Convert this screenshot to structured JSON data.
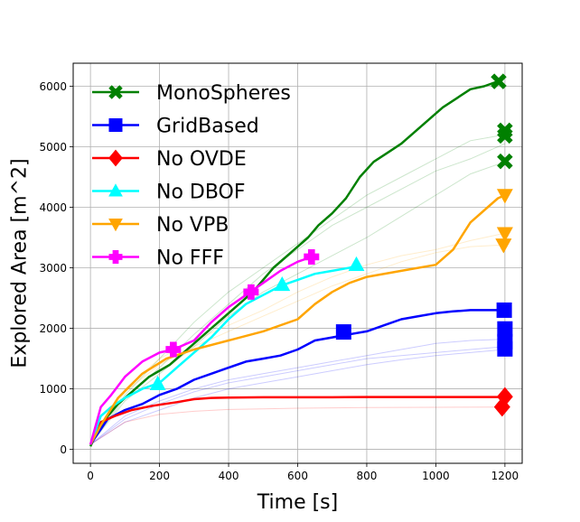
{
  "chart_data": {
    "type": "line",
    "title": "",
    "xlabel": "Time [s]",
    "ylabel": "Explored Area [m^2]",
    "xlim": [
      -50,
      1250
    ],
    "ylim": [
      -230,
      6380
    ],
    "xticks": [
      0,
      200,
      400,
      600,
      800,
      1000,
      1200
    ],
    "yticks": [
      0,
      1000,
      2000,
      3000,
      4000,
      5000,
      6000
    ],
    "grid": true,
    "legend_position": "upper-left",
    "series": [
      {
        "name": "MonoSpheres",
        "color": "#008000",
        "marker": "x",
        "points": [
          [
            0,
            50
          ],
          [
            20,
            300
          ],
          [
            50,
            550
          ],
          [
            80,
            750
          ],
          [
            110,
            900
          ],
          [
            140,
            1050
          ],
          [
            170,
            1200
          ],
          [
            200,
            1300
          ],
          [
            230,
            1400
          ],
          [
            260,
            1550
          ],
          [
            290,
            1700
          ],
          [
            320,
            1850
          ],
          [
            350,
            2000
          ],
          [
            380,
            2150
          ],
          [
            410,
            2300
          ],
          [
            440,
            2450
          ],
          [
            470,
            2600
          ],
          [
            500,
            2800
          ],
          [
            530,
            3000
          ],
          [
            560,
            3150
          ],
          [
            590,
            3300
          ],
          [
            630,
            3500
          ],
          [
            660,
            3700
          ],
          [
            700,
            3900
          ],
          [
            740,
            4150
          ],
          [
            780,
            4500
          ],
          [
            820,
            4750
          ],
          [
            860,
            4900
          ],
          [
            900,
            5050
          ],
          [
            940,
            5250
          ],
          [
            980,
            5450
          ],
          [
            1020,
            5650
          ],
          [
            1060,
            5800
          ],
          [
            1100,
            5950
          ],
          [
            1140,
            6000
          ],
          [
            1180,
            6080
          ]
        ],
        "end_markers": [
          [
            1182,
            6080
          ]
        ]
      },
      {
        "name": "GridBased",
        "color": "#0000ff",
        "marker": "square",
        "points": [
          [
            0,
            80
          ],
          [
            20,
            250
          ],
          [
            50,
            500
          ],
          [
            100,
            650
          ],
          [
            150,
            750
          ],
          [
            200,
            900
          ],
          [
            250,
            1000
          ],
          [
            300,
            1150
          ],
          [
            350,
            1250
          ],
          [
            400,
            1350
          ],
          [
            450,
            1450
          ],
          [
            500,
            1500
          ],
          [
            550,
            1550
          ],
          [
            600,
            1650
          ],
          [
            650,
            1800
          ],
          [
            700,
            1850
          ],
          [
            750,
            1900
          ],
          [
            800,
            1950
          ],
          [
            850,
            2050
          ],
          [
            900,
            2150
          ],
          [
            950,
            2200
          ],
          [
            1000,
            2250
          ],
          [
            1050,
            2280
          ],
          [
            1100,
            2300
          ],
          [
            1150,
            2300
          ],
          [
            1200,
            2300
          ]
        ],
        "end_markers": [
          [
            733,
            1940
          ],
          [
            1198,
            2300
          ]
        ]
      },
      {
        "name": "No OVDE",
        "color": "#ff0000",
        "marker": "diamond",
        "points": [
          [
            0,
            80
          ],
          [
            30,
            450
          ],
          [
            70,
            550
          ],
          [
            120,
            650
          ],
          [
            180,
            720
          ],
          [
            250,
            780
          ],
          [
            300,
            830
          ],
          [
            350,
            850
          ],
          [
            400,
            855
          ],
          [
            500,
            860
          ],
          [
            600,
            860
          ],
          [
            700,
            860
          ],
          [
            800,
            865
          ],
          [
            900,
            865
          ],
          [
            1000,
            865
          ],
          [
            1100,
            865
          ],
          [
            1200,
            865
          ]
        ],
        "end_markers": [
          [
            1200,
            870
          ],
          [
            1192,
            700
          ]
        ]
      },
      {
        "name": "No DBOF",
        "color": "#00ffff",
        "marker": "triangle-up",
        "points": [
          [
            0,
            80
          ],
          [
            30,
            550
          ],
          [
            60,
            700
          ],
          [
            100,
            850
          ],
          [
            150,
            1000
          ],
          [
            200,
            1100
          ],
          [
            250,
            1350
          ],
          [
            300,
            1600
          ],
          [
            350,
            1850
          ],
          [
            400,
            2150
          ],
          [
            450,
            2400
          ],
          [
            500,
            2550
          ],
          [
            550,
            2700
          ],
          [
            600,
            2800
          ],
          [
            650,
            2900
          ],
          [
            700,
            2950
          ],
          [
            750,
            3000
          ],
          [
            775,
            3050
          ]
        ],
        "end_markers": [
          [
            195,
            1080
          ],
          [
            555,
            2720
          ],
          [
            770,
            3050
          ]
        ]
      },
      {
        "name": "No VPB",
        "color": "#ffa500",
        "marker": "triangle-down",
        "points": [
          [
            0,
            80
          ],
          [
            30,
            400
          ],
          [
            80,
            850
          ],
          [
            150,
            1250
          ],
          [
            220,
            1500
          ],
          [
            300,
            1650
          ],
          [
            400,
            1800
          ],
          [
            500,
            1950
          ],
          [
            600,
            2150
          ],
          [
            650,
            2400
          ],
          [
            700,
            2600
          ],
          [
            750,
            2750
          ],
          [
            800,
            2850
          ],
          [
            900,
            2950
          ],
          [
            1000,
            3050
          ],
          [
            1050,
            3300
          ],
          [
            1100,
            3750
          ],
          [
            1150,
            4000
          ],
          [
            1180,
            4150
          ],
          [
            1200,
            4200
          ]
        ],
        "end_markers": [
          [
            1200,
            4200
          ],
          [
            1200,
            3570
          ],
          [
            1196,
            3380
          ]
        ]
      },
      {
        "name": "No FFF",
        "color": "#ff00ff",
        "marker": "plus",
        "points": [
          [
            0,
            80
          ],
          [
            30,
            700
          ],
          [
            60,
            900
          ],
          [
            100,
            1200
          ],
          [
            150,
            1450
          ],
          [
            200,
            1600
          ],
          [
            240,
            1650
          ],
          [
            300,
            1800
          ],
          [
            350,
            2100
          ],
          [
            400,
            2350
          ],
          [
            450,
            2550
          ],
          [
            500,
            2750
          ],
          [
            550,
            2950
          ],
          [
            600,
            3100
          ],
          [
            640,
            3180
          ]
        ],
        "end_markers": [
          [
            240,
            1650
          ],
          [
            465,
            2600
          ],
          [
            640,
            3180
          ]
        ]
      }
    ],
    "faint_runs": [
      {
        "color": "#008000",
        "points": [
          [
            0,
            80
          ],
          [
            100,
            900
          ],
          [
            200,
            1500
          ],
          [
            300,
            2100
          ],
          [
            400,
            2600
          ],
          [
            500,
            3000
          ],
          [
            600,
            3400
          ],
          [
            700,
            3800
          ],
          [
            800,
            4200
          ],
          [
            900,
            4500
          ],
          [
            1000,
            4800
          ],
          [
            1100,
            5100
          ],
          [
            1200,
            5200
          ]
        ],
        "end_marker": [
          1200,
          5270
        ]
      },
      {
        "color": "#008000",
        "points": [
          [
            0,
            80
          ],
          [
            100,
            850
          ],
          [
            200,
            1350
          ],
          [
            300,
            1900
          ],
          [
            400,
            2400
          ],
          [
            500,
            2900
          ],
          [
            600,
            3300
          ],
          [
            700,
            3700
          ],
          [
            800,
            4000
          ],
          [
            900,
            4300
          ],
          [
            1000,
            4600
          ],
          [
            1100,
            4800
          ],
          [
            1200,
            5050
          ]
        ],
        "end_marker": [
          1200,
          5180
        ]
      },
      {
        "color": "#008000",
        "points": [
          [
            0,
            80
          ],
          [
            100,
            800
          ],
          [
            200,
            1250
          ],
          [
            300,
            1700
          ],
          [
            400,
            2200
          ],
          [
            500,
            2600
          ],
          [
            600,
            2900
          ],
          [
            700,
            3200
          ],
          [
            800,
            3500
          ],
          [
            900,
            3850
          ],
          [
            1000,
            4200
          ],
          [
            1100,
            4550
          ],
          [
            1200,
            4750
          ]
        ],
        "end_marker": [
          1200,
          4760
        ]
      },
      {
        "color": "#0000ff",
        "points": [
          [
            0,
            80
          ],
          [
            100,
            550
          ],
          [
            200,
            800
          ],
          [
            300,
            1000
          ],
          [
            400,
            1150
          ],
          [
            500,
            1250
          ],
          [
            600,
            1350
          ],
          [
            700,
            1450
          ],
          [
            800,
            1550
          ],
          [
            900,
            1650
          ],
          [
            1000,
            1750
          ],
          [
            1100,
            1800
          ],
          [
            1200,
            1820
          ]
        ],
        "end_marker": [
          1200,
          1990
        ]
      },
      {
        "color": "#0000ff",
        "points": [
          [
            0,
            80
          ],
          [
            100,
            500
          ],
          [
            200,
            750
          ],
          [
            300,
            950
          ],
          [
            400,
            1100
          ],
          [
            500,
            1200
          ],
          [
            600,
            1300
          ],
          [
            700,
            1400
          ],
          [
            800,
            1500
          ],
          [
            900,
            1550
          ],
          [
            1000,
            1600
          ],
          [
            1100,
            1650
          ],
          [
            1200,
            1700
          ]
        ],
        "end_marker": [
          1200,
          1780
        ]
      },
      {
        "color": "#0000ff",
        "points": [
          [
            0,
            80
          ],
          [
            100,
            450
          ],
          [
            200,
            650
          ],
          [
            300,
            850
          ],
          [
            400,
            1000
          ],
          [
            500,
            1100
          ],
          [
            600,
            1200
          ],
          [
            700,
            1300
          ],
          [
            800,
            1400
          ],
          [
            900,
            1480
          ],
          [
            1000,
            1550
          ],
          [
            1100,
            1600
          ],
          [
            1200,
            1650
          ]
        ],
        "end_marker": [
          1200,
          1660
        ]
      },
      {
        "color": "#ff0000",
        "points": [
          [
            0,
            80
          ],
          [
            100,
            450
          ],
          [
            200,
            580
          ],
          [
            300,
            630
          ],
          [
            400,
            660
          ],
          [
            500,
            670
          ],
          [
            600,
            680
          ],
          [
            800,
            690
          ],
          [
            1000,
            695
          ],
          [
            1200,
            700
          ]
        ],
        "end_marker": [
          1192,
          700
        ]
      },
      {
        "color": "#ffa500",
        "points": [
          [
            0,
            80
          ],
          [
            100,
            1000
          ],
          [
            200,
            1500
          ],
          [
            300,
            1800
          ],
          [
            400,
            2050
          ],
          [
            500,
            2300
          ],
          [
            600,
            2600
          ],
          [
            700,
            2850
          ],
          [
            800,
            3050
          ],
          [
            900,
            3200
          ],
          [
            1000,
            3300
          ],
          [
            1100,
            3450
          ],
          [
            1200,
            3570
          ]
        ],
        "end_marker": [
          1200,
          3570
        ]
      },
      {
        "color": "#ffa500",
        "points": [
          [
            0,
            80
          ],
          [
            100,
            950
          ],
          [
            200,
            1400
          ],
          [
            300,
            1700
          ],
          [
            400,
            1950
          ],
          [
            500,
            2200
          ],
          [
            600,
            2450
          ],
          [
            700,
            2700
          ],
          [
            800,
            2900
          ],
          [
            900,
            3100
          ],
          [
            1000,
            3250
          ],
          [
            1100,
            3350
          ],
          [
            1200,
            3380
          ]
        ],
        "end_marker": [
          1196,
          3380
        ]
      }
    ]
  }
}
